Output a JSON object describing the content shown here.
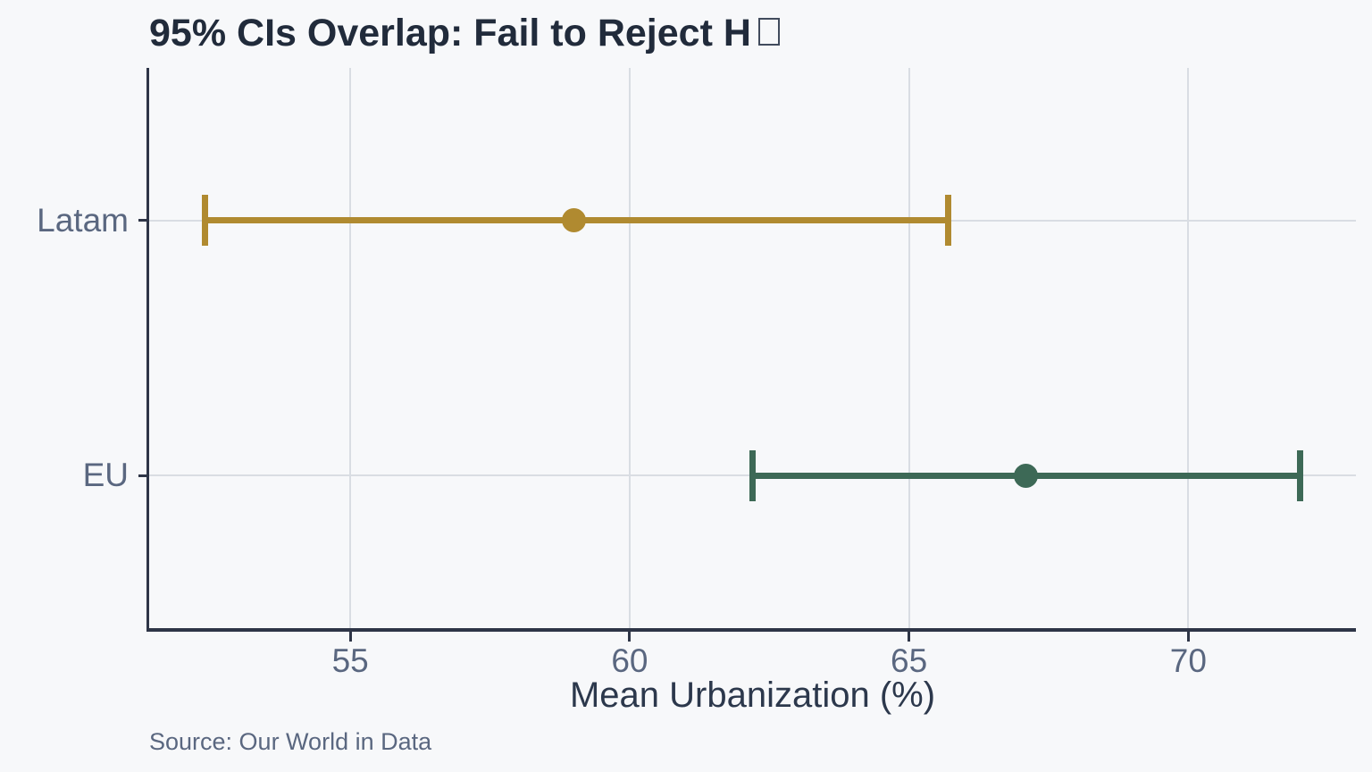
{
  "chart_data": {
    "type": "scatter",
    "subtype": "horizontal-errorbar-95ci",
    "title": "95% CIs Overlap: Fail to Reject H",
    "title_trailing_missing_glyph": "□",
    "xlabel": "Mean Urbanization (%)",
    "ylabel": "",
    "categories": [
      "Latam",
      "EU"
    ],
    "series": [
      {
        "name": "Latam",
        "mean": 59.0,
        "ci_low": 52.4,
        "ci_high": 65.7,
        "color": "#b08a30",
        "y_frac": 0.2725
      },
      {
        "name": "EU",
        "mean": 67.1,
        "ci_low": 62.2,
        "ci_high": 72.0,
        "color": "#3d6956",
        "y_frac": 0.7275
      }
    ],
    "xticks": [
      55,
      60,
      65,
      70
    ],
    "xlim": [
      51.4,
      73.0
    ],
    "grid": true,
    "legend": "none",
    "source": "Source: Our World in Data"
  },
  "colors": {
    "background": "#f7f8fa",
    "spine": "#2e3547",
    "gridline": "#d9dde3",
    "tick_label": "#5a6780",
    "title": "#212b3b",
    "axis_title": "#2c384c",
    "latam": "#b08a30",
    "eu": "#3d6956"
  }
}
